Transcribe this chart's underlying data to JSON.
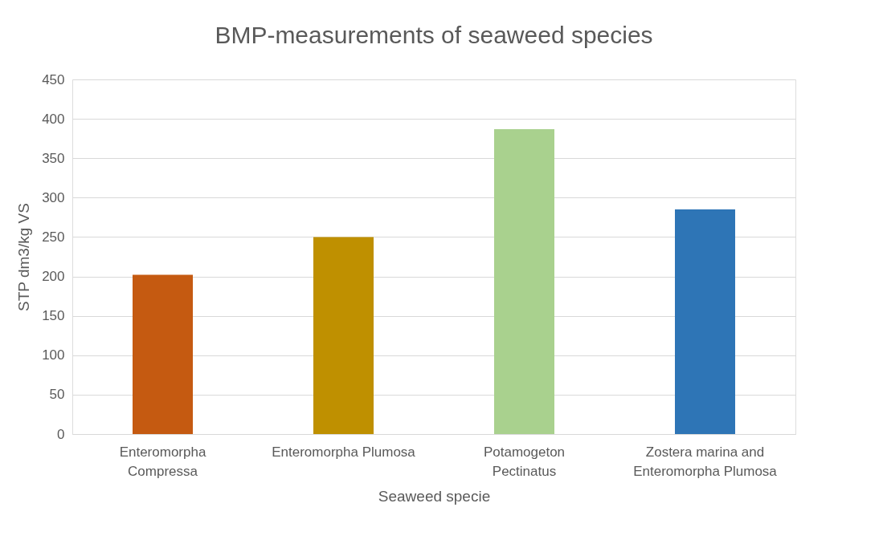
{
  "chart_data": {
    "type": "bar",
    "title": "BMP-measurements of seaweed species",
    "xlabel": "Seaweed specie",
    "ylabel": "STP dm3/kg VS",
    "categories": [
      "Enteromorpha Compressa",
      "Enteromorpha Plumosa",
      "Potamogeton Pectinatus",
      "Zostera marina and Enteromorpha Plumosa"
    ],
    "values": [
      202,
      250,
      387,
      285
    ],
    "colors": [
      "#c55a11",
      "#bf9000",
      "#a9d18e",
      "#2e75b6"
    ],
    "ylim": [
      0,
      450
    ],
    "yticks": [
      0,
      50,
      100,
      150,
      200,
      250,
      300,
      350,
      400,
      450
    ],
    "grid": "y"
  }
}
